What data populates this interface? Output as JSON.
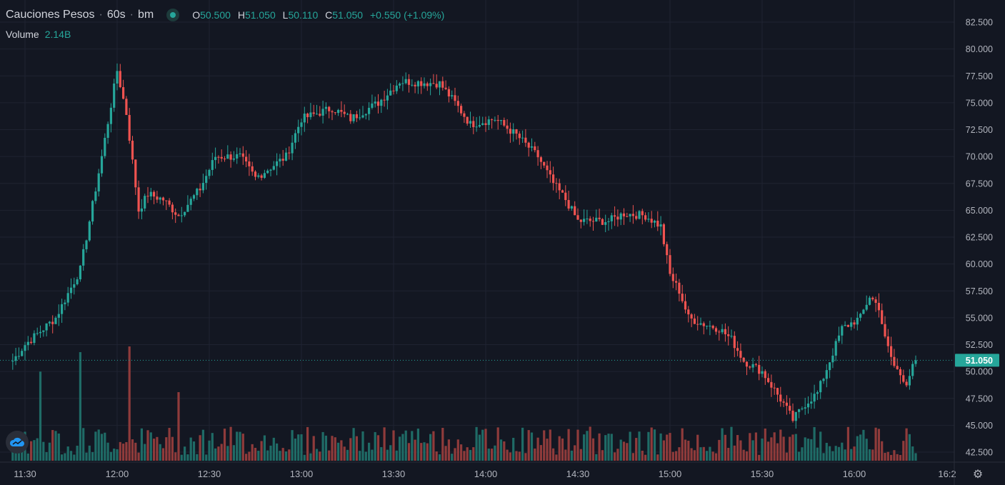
{
  "header": {
    "symbol": "Cauciones Pesos",
    "separator": "·",
    "interval": "60s",
    "exchange": "bm",
    "open_label": "O",
    "open": "50.500",
    "high_label": "H",
    "high": "51.050",
    "low_label": "L",
    "low": "50.110",
    "close_label": "C",
    "close": "51.050",
    "change": "+0.550 (+1.09%)",
    "volume_label": "Volume",
    "volume_value": "2.14B"
  },
  "colors": {
    "background": "#131722",
    "grid": "#1f2331",
    "up": "#26a69a",
    "down": "#ef5350",
    "volume_up": "#1f6b66",
    "volume_down": "#8f3b3b",
    "text": "#b2b5be",
    "price_tag": "#26a69a"
  },
  "icons": {
    "logo": "tradingview-cloud-icon",
    "settings": "gear-icon"
  },
  "chart_data": {
    "type": "candlestick",
    "title": "Cauciones Pesos · 60s · bm",
    "last_price": 51.05,
    "last_price_label": "51.050",
    "y_ticks": [
      "82.500",
      "80.000",
      "77.500",
      "75.000",
      "72.500",
      "70.000",
      "67.500",
      "65.000",
      "62.500",
      "60.000",
      "57.500",
      "55.000",
      "52.500",
      "50.000",
      "47.500",
      "45.000",
      "42.500"
    ],
    "ylim": [
      42.5,
      82.5
    ],
    "x_ticks": [
      "11:30",
      "12:00",
      "12:30",
      "13:00",
      "13:30",
      "14:00",
      "14:30",
      "15:00",
      "15:30",
      "16:00",
      "16:2"
    ],
    "x_range": [
      "11:26",
      "16:26"
    ],
    "grid": true,
    "key_points": [
      {
        "t": "11:26",
        "p": 51.0
      },
      {
        "t": "11:30",
        "p": 52.5
      },
      {
        "t": "11:40",
        "p": 55.0
      },
      {
        "t": "11:48",
        "p": 59.5
      },
      {
        "t": "11:55",
        "p": 70.0
      },
      {
        "t": "12:00",
        "p": 78.0
      },
      {
        "t": "12:03",
        "p": 74.0
      },
      {
        "t": "12:07",
        "p": 65.0
      },
      {
        "t": "12:10",
        "p": 66.5
      },
      {
        "t": "12:15",
        "p": 66.0
      },
      {
        "t": "12:20",
        "p": 64.5
      },
      {
        "t": "12:27",
        "p": 67.0
      },
      {
        "t": "12:32",
        "p": 70.0
      },
      {
        "t": "12:40",
        "p": 70.0
      },
      {
        "t": "12:45",
        "p": 68.0
      },
      {
        "t": "12:55",
        "p": 70.0
      },
      {
        "t": "13:00",
        "p": 73.5
      },
      {
        "t": "13:10",
        "p": 74.5
      },
      {
        "t": "13:16",
        "p": 73.5
      },
      {
        "t": "13:25",
        "p": 75.0
      },
      {
        "t": "13:32",
        "p": 77.0
      },
      {
        "t": "13:45",
        "p": 76.8
      },
      {
        "t": "13:50",
        "p": 75.0
      },
      {
        "t": "13:55",
        "p": 73.0
      },
      {
        "t": "14:03",
        "p": 73.5
      },
      {
        "t": "14:10",
        "p": 72.0
      },
      {
        "t": "14:17",
        "p": 70.0
      },
      {
        "t": "14:22",
        "p": 67.5
      },
      {
        "t": "14:26",
        "p": 66.0
      },
      {
        "t": "14:30",
        "p": 64.0
      },
      {
        "t": "14:40",
        "p": 64.0
      },
      {
        "t": "14:45",
        "p": 64.7
      },
      {
        "t": "14:52",
        "p": 64.5
      },
      {
        "t": "14:57",
        "p": 63.5
      },
      {
        "t": "15:00",
        "p": 59.0
      },
      {
        "t": "15:03",
        "p": 57.5
      },
      {
        "t": "15:06",
        "p": 55.0
      },
      {
        "t": "15:10",
        "p": 54.5
      },
      {
        "t": "15:16",
        "p": 54.0
      },
      {
        "t": "15:20",
        "p": 53.0
      },
      {
        "t": "15:24",
        "p": 51.0
      },
      {
        "t": "15:30",
        "p": 50.0
      },
      {
        "t": "15:37",
        "p": 47.0
      },
      {
        "t": "15:40",
        "p": 45.5
      },
      {
        "t": "15:44",
        "p": 47.0
      },
      {
        "t": "15:48",
        "p": 48.0
      },
      {
        "t": "15:52",
        "p": 51.0
      },
      {
        "t": "15:56",
        "p": 54.0
      },
      {
        "t": "16:02",
        "p": 55.0
      },
      {
        "t": "16:05",
        "p": 57.0
      },
      {
        "t": "16:08",
        "p": 56.0
      },
      {
        "t": "16:10",
        "p": 53.0
      },
      {
        "t": "16:13",
        "p": 50.5
      },
      {
        "t": "16:17",
        "p": 49.0
      },
      {
        "t": "16:20",
        "p": 51.05
      }
    ],
    "volume_spikes": [
      {
        "t": "12:04",
        "v": 1.0,
        "dir": "down"
      },
      {
        "t": "11:48",
        "v": 0.95,
        "dir": "up"
      },
      {
        "t": "11:35",
        "v": 0.78,
        "dir": "up"
      },
      {
        "t": "12:20",
        "v": 0.6,
        "dir": "down"
      }
    ]
  }
}
